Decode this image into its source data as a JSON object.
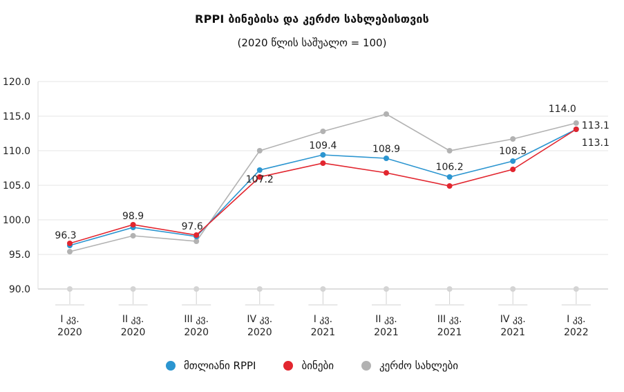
{
  "chart_data": {
    "type": "line",
    "title": "RPPI ბინებისა და კერძო სახლებისთვის",
    "subtitle": "(2020 წლის საშუალო = 100)",
    "categories": [
      [
        "I კვ.",
        "2020"
      ],
      [
        "II კვ.",
        "2020"
      ],
      [
        "III კვ.",
        "2020"
      ],
      [
        "IV კვ.",
        "2020"
      ],
      [
        "I კვ.",
        "2021"
      ],
      [
        "II კვ.",
        "2021"
      ],
      [
        "III კვ.",
        "2021"
      ],
      [
        "IV კვ.",
        "2021"
      ],
      [
        "I კვ.",
        "2022"
      ]
    ],
    "ylim": [
      90,
      120
    ],
    "yticks": [
      "90.0",
      "95.0",
      "100.0",
      "105.0",
      "110.0",
      "115.0",
      "120.0"
    ],
    "grid": true,
    "legend_position": "bottom",
    "series": [
      {
        "name": "მთლიანი RPPI",
        "color": "#2b95d0",
        "values": [
          96.3,
          98.9,
          97.6,
          107.2,
          109.4,
          108.9,
          106.2,
          108.5,
          113.1
        ],
        "data_labels": [
          "96.3",
          "98.9",
          "97.6",
          "107.2",
          "109.4",
          "108.9",
          "106.2",
          "108.5",
          "113.1"
        ]
      },
      {
        "name": "ბინები",
        "color": "#e2262f",
        "values": [
          96.6,
          99.3,
          97.8,
          106.2,
          108.2,
          106.8,
          104.9,
          107.3,
          113.1
        ],
        "data_labels": []
      },
      {
        "name": "კერძო სახლები",
        "color": "#b2b2b2",
        "values": [
          95.4,
          97.7,
          96.9,
          110.0,
          112.8,
          115.3,
          110.0,
          111.7,
          114.0
        ],
        "data_labels": [
          "",
          "",
          "",
          "",
          "",
          "",
          "",
          "",
          "114.0"
        ]
      }
    ]
  }
}
